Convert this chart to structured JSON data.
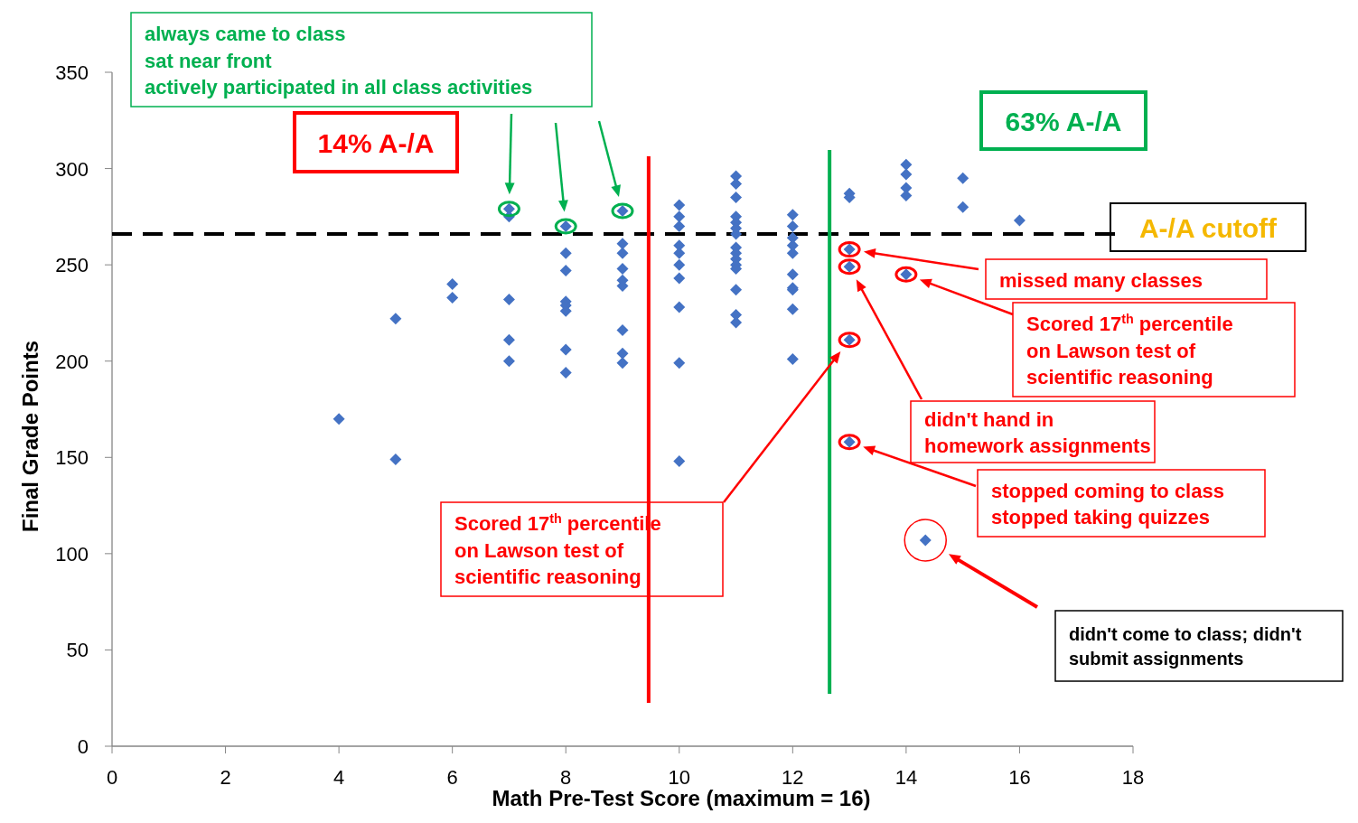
{
  "chart_data": {
    "type": "scatter",
    "xlabel": "Math Pre-Test Score (maximum = 16)",
    "ylabel": "Final Grade Points",
    "xlim": [
      0,
      18
    ],
    "xticks": [
      0,
      2,
      4,
      6,
      8,
      10,
      12,
      14,
      16,
      18
    ],
    "ylim": [
      0,
      350
    ],
    "yticks": [
      0,
      50,
      100,
      150,
      200,
      250,
      300,
      350
    ],
    "marker": "diamond",
    "grid": false,
    "series": [
      {
        "color": "#4472c4",
        "x": [
          4,
          5,
          5,
          6,
          6,
          7,
          7,
          7,
          7,
          7,
          8,
          8,
          8,
          8,
          8,
          8,
          8,
          8,
          9,
          9,
          9,
          9,
          9,
          9,
          9,
          9,
          9,
          10,
          10,
          10,
          10,
          10,
          10,
          10,
          10,
          10,
          10,
          11,
          11,
          11,
          11,
          11,
          11,
          11,
          11,
          11,
          11,
          11,
          11,
          11,
          11,
          11,
          12,
          12,
          12,
          12,
          12,
          12,
          12,
          12,
          12,
          12,
          13,
          13,
          13,
          13,
          13,
          13,
          14,
          14,
          14,
          14,
          14,
          15,
          15,
          16,
          14.34
        ],
        "values": [
          170,
          222,
          149,
          240,
          233,
          279,
          275,
          232,
          211,
          200,
          270,
          256,
          247,
          231,
          229,
          226,
          206,
          194,
          278,
          261,
          256,
          248,
          242,
          239,
          216,
          204,
          199,
          281,
          275,
          270,
          260,
          256,
          250,
          243,
          228,
          199,
          148,
          296,
          292,
          285,
          275,
          272,
          269,
          266,
          259,
          256,
          253,
          250,
          248,
          237,
          224,
          220,
          276,
          270,
          264,
          260,
          256,
          245,
          238,
          237,
          227,
          201,
          287,
          285,
          258,
          249,
          211,
          158,
          302,
          297,
          290,
          286,
          245,
          295,
          280,
          273,
          107
        ]
      }
    ],
    "ref_lines": [
      {
        "axis": "y",
        "value": 266,
        "label": "A-/A cutoff",
        "color": "#000000",
        "line_style": "dashed"
      },
      {
        "axis": "x",
        "value": 9.46,
        "label": "14% A-/A",
        "color": "#ff0000"
      },
      {
        "axis": "x",
        "value": 12.65,
        "label": "63% A-/A",
        "color": "#00b050"
      }
    ],
    "annotations": [
      "always came to class\nsat near front\nactively participated in all class activities",
      "missed many classes",
      "Scored 17$^{th}$ percentile\non Lawson test of\nscientific reasoning",
      "didn't hand in\nhomework assignments",
      "stopped coming to class\nstopped taking quizzes",
      "Scored 17$^{th}$ percentile\non Lawson test of\nscientific reasoning",
      "didn't come to class; didn't\nsubmit assignments"
    ]
  }
}
